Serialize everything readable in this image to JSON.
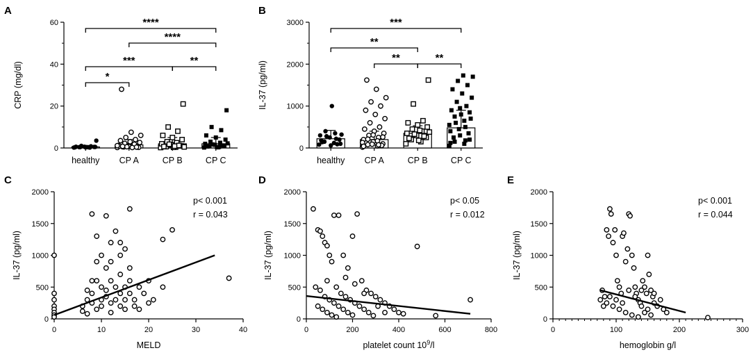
{
  "chart_data": [
    {
      "panel": "A",
      "type": "bar",
      "ylabel": "CRP (mg/dl)",
      "ylim": [
        0,
        60
      ],
      "yticks": [
        0,
        20,
        40,
        60
      ],
      "categories": [
        "healthy",
        "CP A",
        "CP B",
        "CP C"
      ],
      "values": [
        0.5,
        1.5,
        2.0,
        2.0
      ],
      "sd": [
        0.7,
        2.5,
        3.0,
        3.0
      ],
      "markers": [
        "filled-circle",
        "open-circle",
        "open-square",
        "filled-square"
      ],
      "points": [
        [
          0.2,
          0.3,
          0.4,
          0.5,
          0.6,
          0.3,
          0.2,
          0.4,
          0.5,
          0.3,
          0.6,
          0.8,
          1.0,
          3.5,
          0.4
        ],
        [
          0.2,
          0.4,
          0.6,
          0.8,
          1.0,
          1.2,
          1.5,
          0.5,
          0.3,
          0.7,
          0.9,
          1.8,
          2.2,
          2.6,
          3.0,
          3.5,
          4.0,
          5.0,
          6.0,
          7.5,
          28,
          0.4,
          0.6,
          1.1,
          0.2,
          0.8
        ],
        [
          0.2,
          0.4,
          0.6,
          1.0,
          1.5,
          2.0,
          2.5,
          3.0,
          4.0,
          5.0,
          6.0,
          8.0,
          10,
          21,
          0.3,
          0.7,
          1.2,
          1.8,
          0.5,
          0.9
        ],
        [
          0.2,
          0.5,
          0.8,
          1.0,
          1.5,
          2.0,
          2.5,
          3.0,
          4.0,
          5.0,
          6.0,
          8.5,
          10,
          18,
          0.4,
          0.7,
          1.2,
          1.7,
          2.2,
          0.3
        ]
      ],
      "comparisons": [
        {
          "from": 0,
          "to": 3,
          "label": "****"
        },
        {
          "from": 1,
          "to": 3,
          "label": "****"
        },
        {
          "from": 0,
          "to": 2,
          "label": "***"
        },
        {
          "from": 2,
          "to": 3,
          "label": "**"
        },
        {
          "from": 0,
          "to": 1,
          "label": "*"
        }
      ]
    },
    {
      "panel": "B",
      "type": "bar",
      "ylabel": "IL-37 (pg/ml)",
      "ylim": [
        0,
        3000
      ],
      "yticks": [
        0,
        1000,
        2000,
        3000
      ],
      "categories": [
        "healthy",
        "CP A",
        "CP B",
        "CP C"
      ],
      "values": [
        220,
        200,
        350,
        480
      ],
      "sd": [
        200,
        200,
        180,
        420
      ],
      "markers": [
        "filled-circle",
        "open-circle",
        "open-square",
        "filled-square"
      ],
      "points": [
        [
          80,
          120,
          150,
          200,
          250,
          300,
          350,
          400,
          100,
          60,
          180,
          220,
          280,
          320,
          1000,
          140,
          90
        ],
        [
          20,
          50,
          80,
          100,
          150,
          200,
          250,
          300,
          350,
          400,
          450,
          500,
          600,
          700,
          800,
          900,
          1000,
          1100,
          1200,
          1400,
          1620,
          60,
          90,
          130,
          170,
          210,
          260,
          310,
          40,
          75
        ],
        [
          100,
          150,
          200,
          250,
          300,
          350,
          400,
          450,
          500,
          550,
          600,
          650,
          1050,
          1620,
          180,
          230,
          280,
          330,
          380,
          420
        ],
        [
          50,
          100,
          150,
          200,
          300,
          400,
          500,
          600,
          700,
          800,
          900,
          1000,
          1100,
          1200,
          1300,
          1400,
          1500,
          1600,
          1700,
          1730,
          250,
          350,
          450,
          550,
          650,
          750,
          850,
          950,
          120,
          180
        ]
      ],
      "comparisons": [
        {
          "from": 0,
          "to": 3,
          "label": "***"
        },
        {
          "from": 0,
          "to": 2,
          "label": "**"
        },
        {
          "from": 1,
          "to": 2,
          "label": "**"
        },
        {
          "from": 2,
          "to": 3,
          "label": "**"
        }
      ]
    },
    {
      "panel": "C",
      "type": "scatter",
      "xlabel": "MELD",
      "ylabel": "IL-37 (pg/ml)",
      "xlim": [
        0,
        40
      ],
      "ylim": [
        0,
        2000
      ],
      "xticks": [
        0,
        10,
        20,
        30,
        40
      ],
      "yticks": [
        0,
        500,
        1000,
        1500,
        2000
      ],
      "stats": [
        "p< 0.001",
        "r = 0.043"
      ],
      "fit": [
        [
          0,
          60
        ],
        [
          34,
          1000
        ]
      ],
      "points": [
        [
          0,
          1000
        ],
        [
          0,
          400
        ],
        [
          0,
          300
        ],
        [
          0,
          200
        ],
        [
          0,
          150
        ],
        [
          0,
          100
        ],
        [
          0,
          60
        ],
        [
          0,
          30
        ],
        [
          6,
          200
        ],
        [
          6,
          120
        ],
        [
          7,
          300
        ],
        [
          7,
          80
        ],
        [
          7,
          450
        ],
        [
          8,
          1650
        ],
        [
          8,
          400
        ],
        [
          8,
          250
        ],
        [
          9,
          1300
        ],
        [
          9,
          900
        ],
        [
          9,
          600
        ],
        [
          9,
          150
        ],
        [
          10,
          1000
        ],
        [
          10,
          500
        ],
        [
          10,
          300
        ],
        [
          10,
          200
        ],
        [
          11,
          1620
        ],
        [
          11,
          450
        ],
        [
          11,
          800
        ],
        [
          11,
          350
        ],
        [
          12,
          1200
        ],
        [
          12,
          600
        ],
        [
          12,
          250
        ],
        [
          12,
          100
        ],
        [
          13,
          1380
        ],
        [
          13,
          500
        ],
        [
          13,
          300
        ],
        [
          14,
          1200
        ],
        [
          14,
          700
        ],
        [
          14,
          400
        ],
        [
          14,
          200
        ],
        [
          15,
          500
        ],
        [
          15,
          300
        ],
        [
          15,
          150
        ],
        [
          16,
          1730
        ],
        [
          16,
          800
        ],
        [
          16,
          600
        ],
        [
          16,
          400
        ],
        [
          17,
          300
        ],
        [
          17,
          200
        ],
        [
          18,
          500
        ],
        [
          18,
          150
        ],
        [
          19,
          400
        ],
        [
          20,
          600
        ],
        [
          20,
          250
        ],
        [
          21,
          300
        ],
        [
          23,
          1250
        ],
        [
          23,
          500
        ],
        [
          25,
          1400
        ],
        [
          37,
          640
        ],
        [
          14,
          1000
        ],
        [
          15,
          1100
        ],
        [
          12,
          900
        ],
        [
          8,
          600
        ]
      ]
    },
    {
      "panel": "D",
      "type": "scatter",
      "xlabel": "platelet count 10",
      "xlabel_sup": "9",
      "xlabel_suffix": "/l",
      "ylabel": "IL-37 (pg/ml)",
      "xlim": [
        0,
        800
      ],
      "ylim": [
        0,
        2000
      ],
      "xticks": [
        0,
        200,
        400,
        600,
        800
      ],
      "yticks": [
        0,
        500,
        1000,
        1500,
        2000
      ],
      "stats": [
        "p< 0.05",
        "r = 0.012"
      ],
      "fit": [
        [
          0,
          360
        ],
        [
          710,
          80
        ]
      ],
      "points": [
        [
          30,
          1730
        ],
        [
          50,
          1400
        ],
        [
          60,
          1380
        ],
        [
          70,
          1300
        ],
        [
          80,
          1200
        ],
        [
          90,
          1150
        ],
        [
          100,
          1000
        ],
        [
          110,
          900
        ],
        [
          120,
          1630
        ],
        [
          140,
          1630
        ],
        [
          160,
          1000
        ],
        [
          180,
          800
        ],
        [
          200,
          1300
        ],
        [
          220,
          1650
        ],
        [
          240,
          600
        ],
        [
          260,
          450
        ],
        [
          280,
          400
        ],
        [
          300,
          350
        ],
        [
          320,
          300
        ],
        [
          340,
          250
        ],
        [
          360,
          200
        ],
        [
          380,
          150
        ],
        [
          400,
          100
        ],
        [
          420,
          80
        ],
        [
          480,
          1140
        ],
        [
          560,
          50
        ],
        [
          710,
          300
        ],
        [
          40,
          500
        ],
        [
          60,
          450
        ],
        [
          80,
          350
        ],
        [
          100,
          300
        ],
        [
          120,
          250
        ],
        [
          140,
          200
        ],
        [
          160,
          150
        ],
        [
          180,
          100
        ],
        [
          200,
          60
        ],
        [
          50,
          200
        ],
        [
          70,
          150
        ],
        [
          90,
          100
        ],
        [
          110,
          60
        ],
        [
          130,
          30
        ],
        [
          150,
          400
        ],
        [
          170,
          350
        ],
        [
          190,
          300
        ],
        [
          210,
          250
        ],
        [
          230,
          200
        ],
        [
          250,
          150
        ],
        [
          270,
          100
        ],
        [
          290,
          50
        ],
        [
          90,
          600
        ],
        [
          130,
          500
        ],
        [
          170,
          650
        ],
        [
          210,
          550
        ],
        [
          250,
          400
        ],
        [
          310,
          200
        ],
        [
          340,
          100
        ]
      ]
    },
    {
      "panel": "E",
      "type": "scatter",
      "xlabel": "hemoglobin g/l",
      "ylabel": "IL-37 (pg/ml)",
      "xlim": [
        0,
        300
      ],
      "ylim": [
        0,
        2000
      ],
      "xticks": [
        0,
        100,
        200,
        300
      ],
      "yticks": [
        0,
        500,
        1000,
        1500,
        2000
      ],
      "stats": [
        "p< 0.001",
        "r = 0.044"
      ],
      "fit": [
        [
          75,
          450
        ],
        [
          210,
          100
        ]
      ],
      "points": [
        [
          75,
          300
        ],
        [
          78,
          450
        ],
        [
          80,
          200
        ],
        [
          82,
          350
        ],
        [
          85,
          1400
        ],
        [
          88,
          1300
        ],
        [
          90,
          1730
        ],
        [
          92,
          1650
        ],
        [
          95,
          1200
        ],
        [
          98,
          1400
        ],
        [
          100,
          1000
        ],
        [
          102,
          600
        ],
        [
          105,
          500
        ],
        [
          108,
          400
        ],
        [
          110,
          1300
        ],
        [
          112,
          1350
        ],
        [
          115,
          900
        ],
        [
          118,
          1100
        ],
        [
          120,
          1650
        ],
        [
          122,
          1620
        ],
        [
          125,
          1000
        ],
        [
          128,
          800
        ],
        [
          130,
          500
        ],
        [
          132,
          400
        ],
        [
          135,
          300
        ],
        [
          138,
          250
        ],
        [
          140,
          200
        ],
        [
          142,
          600
        ],
        [
          145,
          500
        ],
        [
          148,
          400
        ],
        [
          150,
          1000
        ],
        [
          152,
          700
        ],
        [
          155,
          450
        ],
        [
          158,
          350
        ],
        [
          160,
          250
        ],
        [
          165,
          200
        ],
        [
          170,
          300
        ],
        [
          175,
          150
        ],
        [
          180,
          100
        ],
        [
          245,
          20
        ],
        [
          85,
          250
        ],
        [
          95,
          200
        ],
        [
          105,
          150
        ],
        [
          115,
          100
        ],
        [
          125,
          60
        ],
        [
          135,
          30
        ],
        [
          145,
          100
        ],
        [
          155,
          60
        ],
        [
          90,
          350
        ],
        [
          100,
          300
        ],
        [
          110,
          250
        ],
        [
          120,
          450
        ],
        [
          130,
          350
        ],
        [
          140,
          450
        ],
        [
          150,
          150
        ],
        [
          160,
          400
        ]
      ]
    }
  ]
}
